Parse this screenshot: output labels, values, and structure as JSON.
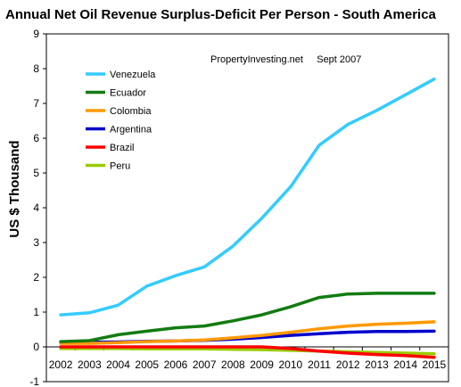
{
  "chart_data": {
    "type": "line",
    "title": "Annual Net Oil Revenue Surplus-Deficit Per Person - South America",
    "annotation": "PropertyInvesting.net     Sept 2007",
    "xlabel": "",
    "ylabel": "US $ Thousand",
    "ylim": [
      -1,
      9
    ],
    "yticks": [
      "-1",
      "0",
      "1",
      "2",
      "3",
      "4",
      "5",
      "6",
      "7",
      "8",
      "9"
    ],
    "x": [
      "2002",
      "2003",
      "2004",
      "2005",
      "2006",
      "2007",
      "2008",
      "2009",
      "2010",
      "2011",
      "2012",
      "2013",
      "2014",
      "2015"
    ],
    "grid": false,
    "legend_position": "top-left",
    "series": [
      {
        "name": "Venezuela",
        "color": "#33CCFF",
        "values": [
          0.92,
          0.98,
          1.2,
          1.75,
          2.05,
          2.3,
          2.9,
          3.7,
          4.6,
          5.8,
          6.4,
          6.8,
          7.25,
          7.7
        ]
      },
      {
        "name": "Ecuador",
        "color": "#127C12",
        "values": [
          0.15,
          0.18,
          0.35,
          0.45,
          0.55,
          0.6,
          0.75,
          0.92,
          1.15,
          1.42,
          1.52,
          1.54,
          1.54,
          1.54
        ]
      },
      {
        "name": "Colombia",
        "color": "#FF9900",
        "values": [
          0.1,
          0.1,
          0.12,
          0.15,
          0.17,
          0.2,
          0.26,
          0.33,
          0.42,
          0.52,
          0.6,
          0.65,
          0.68,
          0.72
        ]
      },
      {
        "name": "Argentina",
        "color": "#0000CC",
        "values": [
          0.12,
          0.13,
          0.14,
          0.16,
          0.17,
          0.19,
          0.22,
          0.27,
          0.33,
          0.38,
          0.42,
          0.44,
          0.44,
          0.45
        ]
      },
      {
        "name": "Brazil",
        "color": "#FF0000",
        "values": [
          0.0,
          0.0,
          0.0,
          0.0,
          0.0,
          0.0,
          0.0,
          0.0,
          -0.05,
          -0.12,
          -0.18,
          -0.22,
          -0.25,
          -0.3
        ]
      },
      {
        "name": "Peru",
        "color": "#99CC00",
        "values": [
          -0.05,
          -0.05,
          -0.05,
          -0.06,
          -0.06,
          -0.06,
          -0.07,
          -0.08,
          -0.1,
          -0.12,
          -0.14,
          -0.16,
          -0.18,
          -0.2
        ]
      }
    ]
  }
}
